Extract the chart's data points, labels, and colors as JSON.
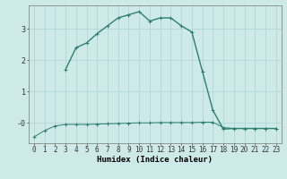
{
  "line1_x": [
    0,
    1,
    2,
    3,
    4,
    5,
    6,
    7,
    8,
    9,
    10,
    11,
    12,
    13,
    14,
    15,
    16,
    17,
    18,
    19,
    20,
    21,
    22,
    23
  ],
  "line1_y": [
    -0.45,
    -0.25,
    -0.1,
    -0.05,
    -0.05,
    -0.05,
    -0.04,
    -0.03,
    -0.02,
    -0.01,
    0.0,
    0.0,
    0.01,
    0.01,
    0.01,
    0.01,
    0.02,
    0.02,
    -0.15,
    -0.18,
    -0.18,
    -0.18,
    -0.18,
    -0.18
  ],
  "line2_x": [
    3,
    4,
    5,
    6,
    7,
    8,
    9,
    10,
    11,
    12,
    13,
    14,
    15,
    16,
    17,
    18,
    19,
    20,
    21,
    22,
    23
  ],
  "line2_y": [
    1.7,
    2.4,
    2.55,
    2.85,
    3.1,
    3.35,
    3.45,
    3.55,
    3.25,
    3.35,
    3.35,
    3.1,
    2.9,
    1.65,
    0.4,
    -0.2,
    -0.18,
    -0.18,
    -0.18,
    -0.18,
    -0.18
  ],
  "color": "#2d7f6e",
  "bg_color": "#ceeae8",
  "grid_color": "#aed4d2",
  "xlabel": "Humidex (Indice chaleur)",
  "xlim": [
    -0.5,
    23.5
  ],
  "ylim": [
    -0.65,
    3.75
  ],
  "xticks": [
    0,
    1,
    2,
    3,
    4,
    5,
    6,
    7,
    8,
    9,
    10,
    11,
    12,
    13,
    14,
    15,
    16,
    17,
    18,
    19,
    20,
    21,
    22,
    23
  ],
  "yticks": [
    0,
    1,
    2,
    3
  ],
  "ytick_labels": [
    "-0",
    "1",
    "2",
    "3"
  ],
  "xlabel_fontsize": 6.5,
  "tick_fontsize": 5.5,
  "line_width": 1.0,
  "marker": "+"
}
